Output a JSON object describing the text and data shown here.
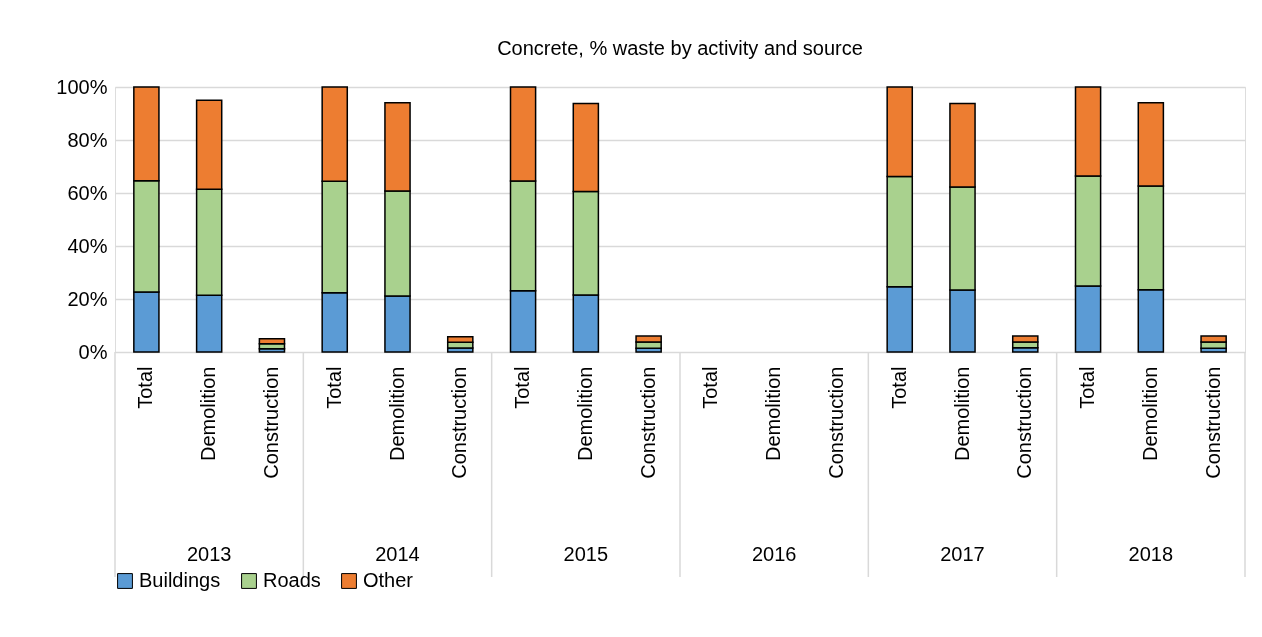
{
  "chart_data": {
    "type": "bar",
    "title": "Concrete, % waste by activity and source",
    "stacked": true,
    "categories": [
      "Total",
      "Demolition",
      "Construction",
      "Total",
      "Demolition",
      "Construction",
      "Total",
      "Demolition",
      "Construction",
      "Total",
      "Demolition",
      "Construction",
      "Total",
      "Demolition",
      "Construction",
      "Total",
      "Demolition",
      "Construction"
    ],
    "annotations": [
      "2013",
      "2014",
      "2015",
      "2016",
      "2017",
      "2018"
    ],
    "series": [
      {
        "name": "Buildings",
        "color": "#5b9bd5",
        "values": [
          22.6,
          21.4,
          1.2,
          22.4,
          21.1,
          1.5,
          23.1,
          21.5,
          1.4,
          null,
          null,
          null,
          24.6,
          23.4,
          1.6,
          24.9,
          23.5,
          1.4
        ]
      },
      {
        "name": "Roads",
        "color": "#a9d18e",
        "values": [
          42.0,
          40.0,
          1.9,
          42.0,
          39.7,
          2.2,
          41.4,
          39.1,
          2.4,
          null,
          null,
          null,
          41.6,
          38.9,
          2.2,
          41.5,
          39.1,
          2.4
        ]
      },
      {
        "name": "Other",
        "color": "#ed7d31",
        "values": [
          35.4,
          33.6,
          1.9,
          35.6,
          33.3,
          2.1,
          35.5,
          33.2,
          2.2,
          null,
          null,
          null,
          33.8,
          31.5,
          2.2,
          33.6,
          31.5,
          2.2
        ]
      }
    ],
    "ylim": [
      0,
      100
    ],
    "yticks": [
      {
        "value": 0,
        "label": "0%"
      },
      {
        "value": 20,
        "label": "20%"
      },
      {
        "value": 40,
        "label": "40%"
      },
      {
        "value": 60,
        "label": "60%"
      },
      {
        "value": 80,
        "label": "80%"
      },
      {
        "value": 100,
        "label": "100%"
      }
    ],
    "grid": "y",
    "legend": "bottom"
  }
}
